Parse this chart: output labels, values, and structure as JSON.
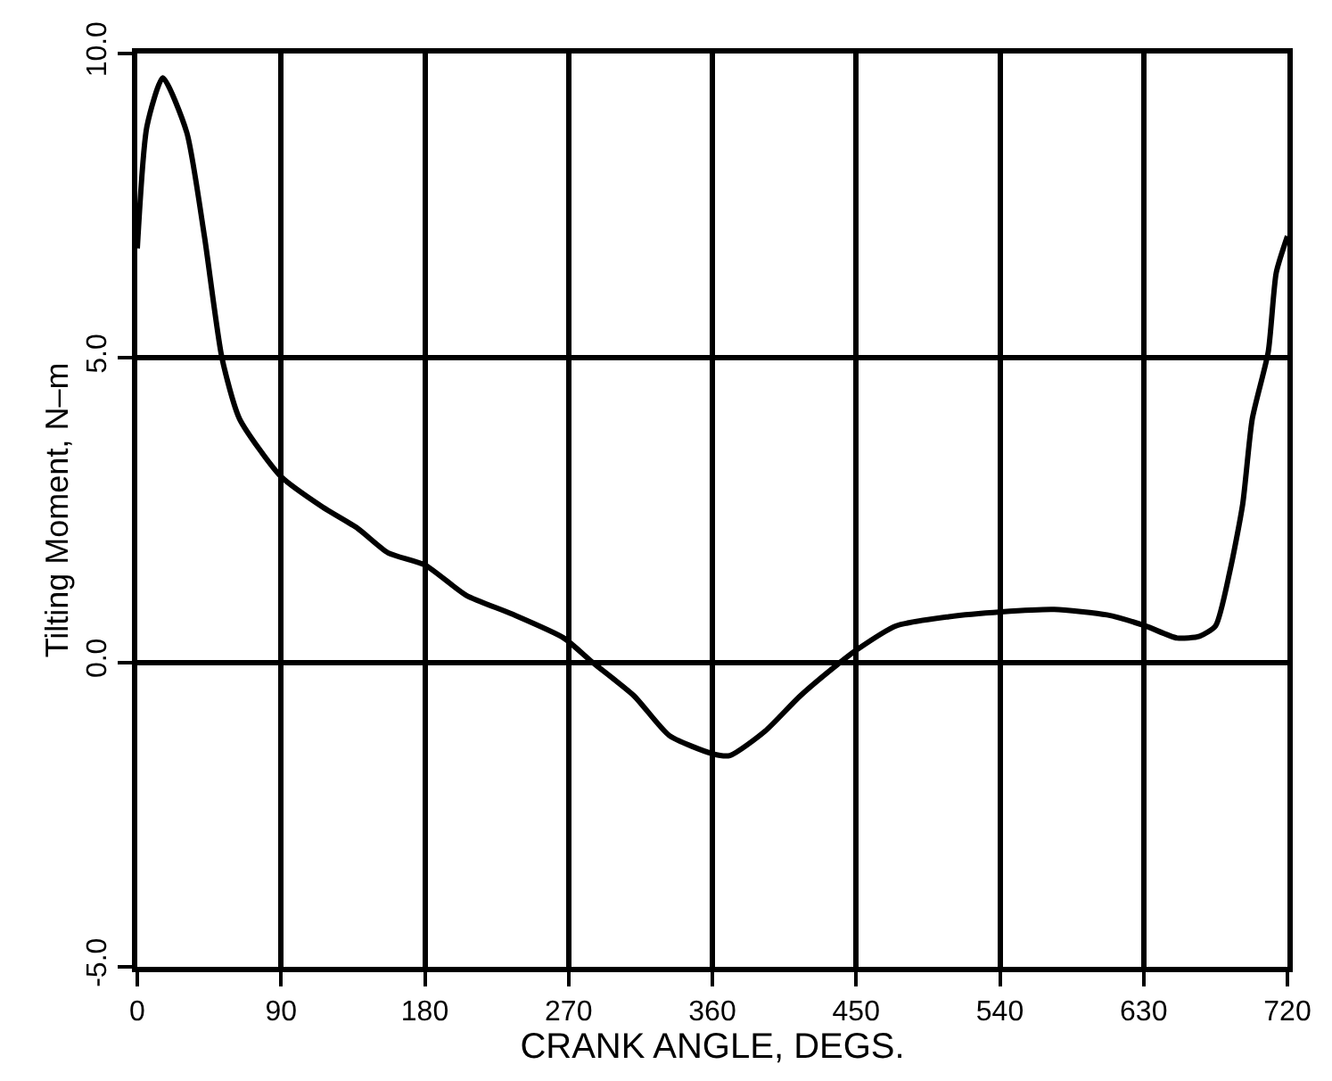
{
  "chart_data": {
    "type": "line",
    "xlabel": "CRANK ANGLE, DEGS.",
    "ylabel": "Tilting Moment, N–m",
    "x": [
      0,
      6,
      16,
      31,
      42,
      53,
      64,
      90,
      116,
      138,
      157,
      180,
      206,
      234,
      267,
      285,
      311,
      333,
      360,
      371,
      393,
      415,
      440,
      450,
      475,
      508,
      541,
      574,
      607,
      631,
      651,
      665,
      675,
      684,
      692,
      698,
      708,
      713,
      720
    ],
    "series": [
      {
        "color": "#000000",
        "values": [
          6.8,
          8.8,
          9.6,
          8.7,
          7.0,
          5.0,
          4.0,
          3.05,
          2.55,
          2.2,
          1.8,
          1.6,
          1.1,
          0.8,
          0.4,
          0.0,
          -0.55,
          -1.2,
          -1.5,
          -1.53,
          -1.13,
          -0.55,
          0.0,
          0.2,
          0.6,
          0.75,
          0.83,
          0.87,
          0.78,
          0.6,
          0.4,
          0.43,
          0.6,
          1.5,
          2.6,
          4.0,
          5.1,
          6.4,
          7.0
        ]
      }
    ],
    "xlim": [
      0,
      720
    ],
    "xticks": [
      0,
      90,
      180,
      270,
      360,
      450,
      540,
      630,
      720
    ],
    "ylim": [
      -5.0,
      10.0
    ],
    "yticks": [
      {
        "value": -5,
        "label": "-5.0"
      },
      {
        "value": 0,
        "label": "0.0"
      },
      {
        "value": 5,
        "label": "5.0"
      },
      {
        "value": 10,
        "label": "10.0"
      }
    ],
    "grid": true,
    "marker": "none",
    "line_style": "solid"
  }
}
